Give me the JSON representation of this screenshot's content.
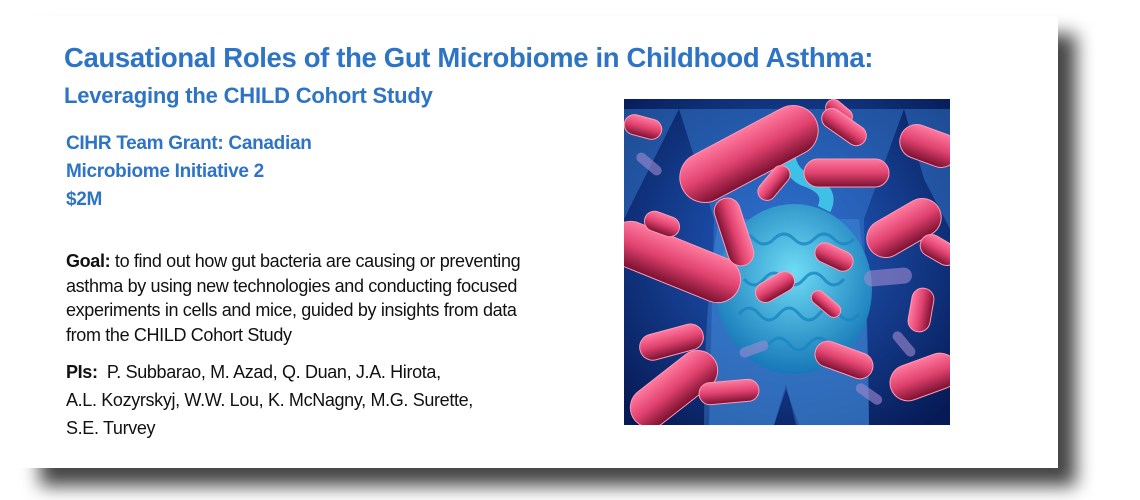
{
  "slide": {
    "title": "Causational Roles of the Gut Microbiome in Childhood Asthma:",
    "subtitle": "Leveraging the CHILD Cohort Study",
    "grant_lines": [
      "CIHR Team Grant: Canadian",
      "Microbiome Initiative 2",
      "$2M"
    ],
    "goal_label": "Goal:",
    "goal_lines": [
      " to find out how gut bacteria are causing or preventing",
      "asthma by using new technologies and conducting focused",
      "experiments in cells and mice, guided by insights from data",
      "from the CHILD Cohort Study"
    ],
    "pis_label": "PIs:",
    "pis_lines": [
      "  P. Subbarao, M. Azad, Q. Duan, J.A. Hirota,",
      "A.L. Kozyrskyj, W.W. Lou, K. McNagny, M.G. Surette,",
      "S.E. Turvey"
    ],
    "image": "gut-bacteria-illustration"
  },
  "colors": {
    "heading": "#2e74c5",
    "body": "#111111",
    "bacteria": "#e0426e",
    "intestine": "#2fb6de",
    "background": "#0b2a78"
  }
}
